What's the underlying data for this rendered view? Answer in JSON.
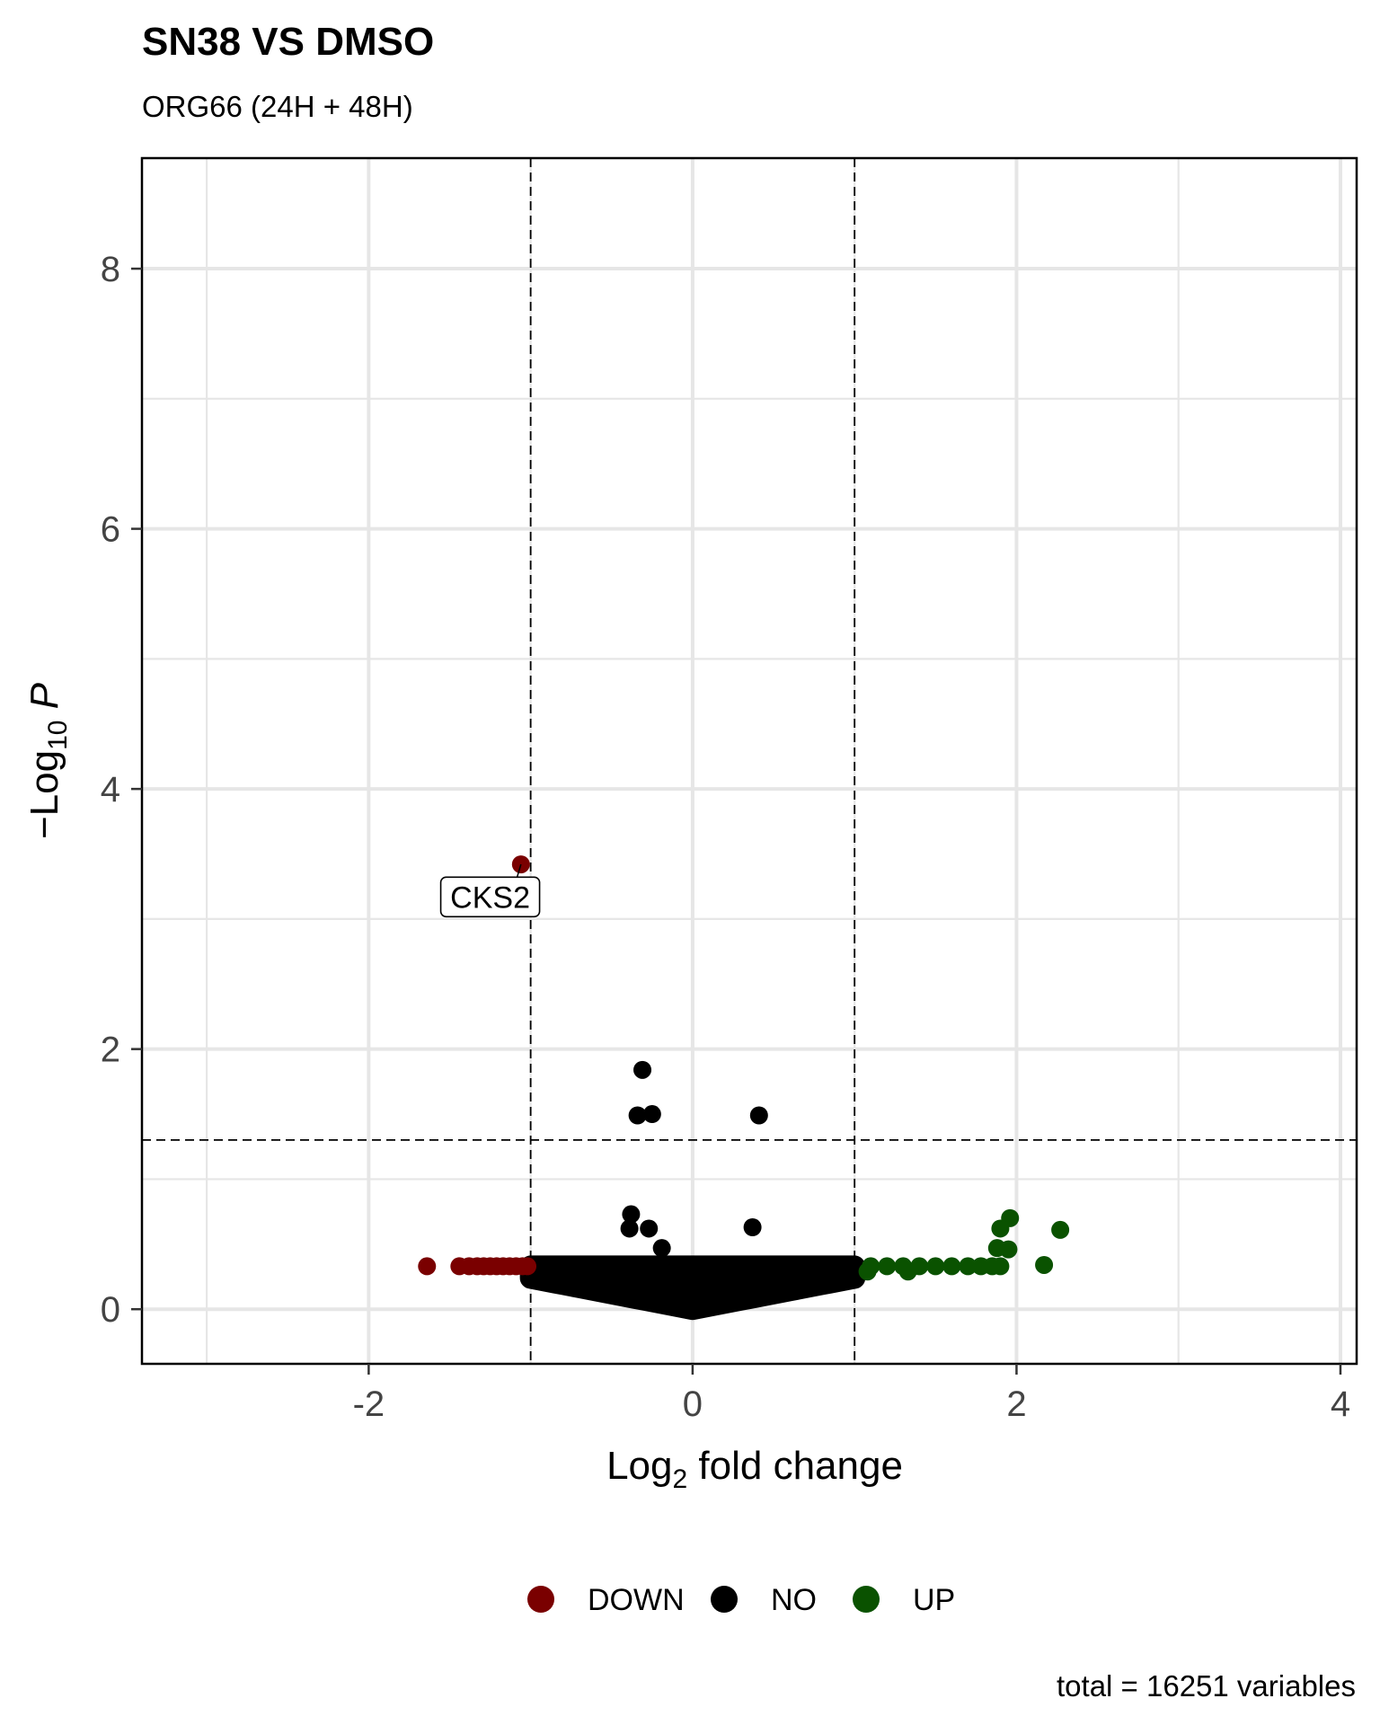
{
  "chart_data": {
    "type": "scatter",
    "title": "SN38 VS DMSO",
    "subtitle": "ORG66 (24H + 48H)",
    "xlabel": {
      "base": "Log",
      "sub": "2",
      "rest": " fold change"
    },
    "ylabel": {
      "prefix": "−Log",
      "sub": "10",
      "italic": " P"
    },
    "xlim": [
      -3.4,
      4.1
    ],
    "ylim": [
      -0.42,
      8.85
    ],
    "x_ticks": [
      -2,
      0,
      2,
      4
    ],
    "x_tick_labels": [
      "-2",
      "0",
      "2",
      "4"
    ],
    "y_ticks": [
      0,
      2,
      4,
      6,
      8
    ],
    "y_tick_labels": [
      "0",
      "2",
      "4",
      "6",
      "8"
    ],
    "grid": true,
    "thresholds": {
      "fc": [
        -1,
        1
      ],
      "p": 1.301
    },
    "legend": {
      "position": "bottom",
      "entries": [
        {
          "name": "DOWN",
          "color": "#7a0000"
        },
        {
          "name": "NO",
          "color": "#000000"
        },
        {
          "name": "UP",
          "color": "#0a5200"
        }
      ]
    },
    "series": [
      {
        "name": "DOWN",
        "color": "#7a0000",
        "points": [
          [
            -1.06,
            3.42
          ],
          [
            -1.64,
            0.33
          ],
          [
            -1.44,
            0.33
          ],
          [
            -1.38,
            0.33
          ],
          [
            -1.33,
            0.33
          ],
          [
            -1.29,
            0.33
          ],
          [
            -1.25,
            0.33
          ],
          [
            -1.21,
            0.33
          ],
          [
            -1.17,
            0.33
          ],
          [
            -1.13,
            0.33
          ],
          [
            -1.09,
            0.33
          ],
          [
            -1.05,
            0.33
          ],
          [
            -1.02,
            0.33
          ]
        ]
      },
      {
        "name": "NO",
        "color": "#000000",
        "points": [
          [
            -0.31,
            1.84
          ],
          [
            -0.34,
            1.49
          ],
          [
            -0.25,
            1.5
          ],
          [
            0.41,
            1.49
          ],
          [
            -0.38,
            0.73
          ],
          [
            -0.39,
            0.62
          ],
          [
            -0.27,
            0.62
          ],
          [
            0.37,
            0.63
          ],
          [
            -0.19,
            0.47
          ]
        ]
      },
      {
        "name": "UP",
        "color": "#0a5200",
        "points": [
          [
            1.96,
            0.7
          ],
          [
            1.9,
            0.62
          ],
          [
            2.27,
            0.61
          ],
          [
            1.88,
            0.47
          ],
          [
            1.95,
            0.46
          ],
          [
            2.17,
            0.34
          ],
          [
            1.33,
            0.29
          ],
          [
            1.08,
            0.29
          ],
          [
            1.1,
            0.33
          ],
          [
            1.2,
            0.33
          ],
          [
            1.3,
            0.33
          ],
          [
            1.4,
            0.33
          ],
          [
            1.5,
            0.33
          ],
          [
            1.6,
            0.33
          ],
          [
            1.7,
            0.33
          ],
          [
            1.78,
            0.33
          ],
          [
            1.85,
            0.33
          ],
          [
            1.9,
            0.33
          ]
        ]
      }
    ],
    "labels": [
      {
        "text": "CKS2",
        "x": -1.25,
        "y": 3.17,
        "point_x": -1.06,
        "point_y": 3.42
      }
    ],
    "caption": "total = 16251 variables"
  }
}
